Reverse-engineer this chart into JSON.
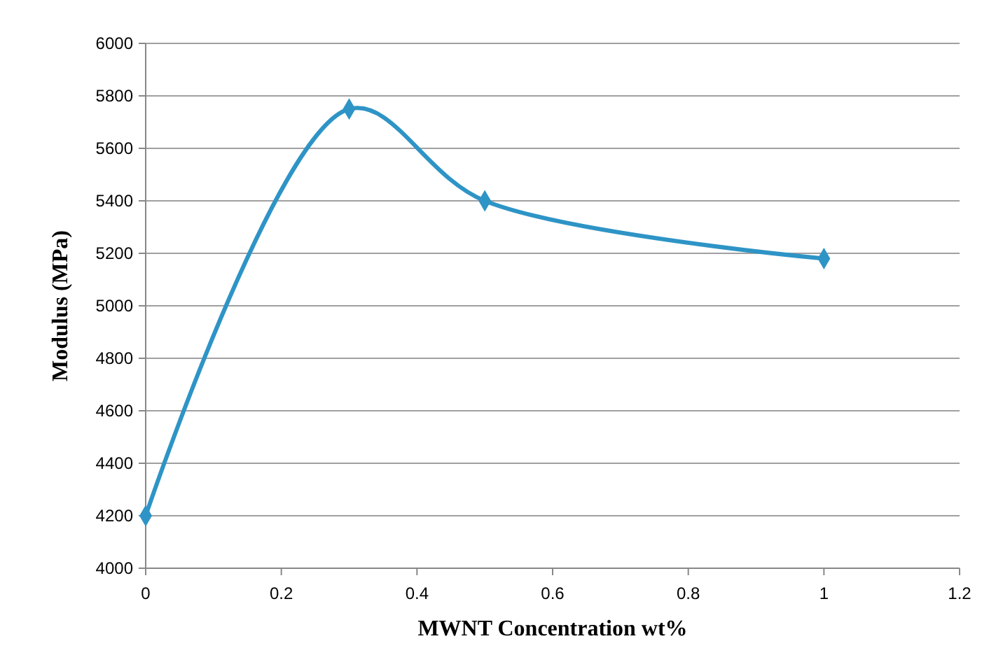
{
  "chart_data": {
    "type": "line",
    "xlabel": "MWNT Concentration wt%",
    "ylabel": "Modulus (MPa)",
    "x": [
      0,
      0.3,
      0.5,
      1
    ],
    "series": [
      {
        "color": "#2e94c6",
        "values": [
          4200,
          5750,
          5400,
          5180
        ]
      }
    ],
    "xlim": [
      0,
      1.2
    ],
    "xticks": [
      0,
      0.2,
      0.4,
      0.6,
      0.8,
      1,
      1.2
    ],
    "ylim": [
      4000,
      6000
    ],
    "yticks": [
      4000,
      4200,
      4400,
      4600,
      4800,
      5000,
      5200,
      5400,
      5600,
      5800,
      6000
    ],
    "grid": "y",
    "marker": "diamond",
    "line_style": "solid"
  }
}
